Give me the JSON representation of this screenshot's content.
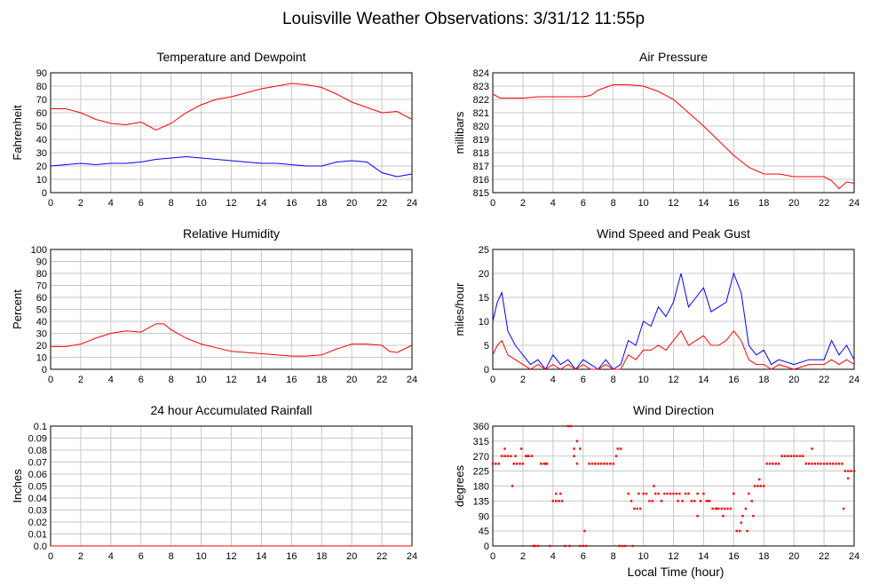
{
  "page": {
    "title": "Louisville Weather Observations: 3/31/12 11:55p",
    "x_axis_title": "Local Time (hour)"
  },
  "chart_data": [
    {
      "id": "temp",
      "type": "line",
      "title": "Temperature and Dewpoint",
      "xlabel": "",
      "ylabel": "Fahrenheit",
      "xlim": [
        0,
        24
      ],
      "ylim": [
        0,
        90
      ],
      "xticks": [
        0,
        2,
        4,
        6,
        8,
        10,
        12,
        14,
        16,
        18,
        20,
        22,
        24
      ],
      "yticks": [
        0,
        10,
        20,
        30,
        40,
        50,
        60,
        70,
        80,
        90
      ],
      "grid": true,
      "series": [
        {
          "color": "#ff0000",
          "x": [
            0,
            1,
            2,
            3,
            4,
            5,
            6,
            7,
            8,
            9,
            10,
            11,
            12,
            13,
            14,
            15,
            16,
            17,
            18,
            19,
            20,
            21,
            22,
            23,
            24
          ],
          "y": [
            63,
            63,
            60,
            55,
            52,
            51,
            53,
            47,
            52,
            60,
            66,
            70,
            72,
            75,
            78,
            80,
            82,
            81,
            79,
            74,
            68,
            64,
            60,
            61,
            55
          ]
        },
        {
          "color": "#0000ff",
          "x": [
            0,
            1,
            2,
            3,
            4,
            5,
            6,
            7,
            8,
            9,
            10,
            11,
            12,
            13,
            14,
            15,
            16,
            17,
            18,
            19,
            20,
            21,
            22,
            23,
            24
          ],
          "y": [
            20,
            21,
            22,
            21,
            22,
            22,
            23,
            25,
            26,
            27,
            26,
            25,
            24,
            23,
            22,
            22,
            21,
            20,
            20,
            23,
            24,
            23,
            15,
            12,
            14
          ]
        }
      ]
    },
    {
      "id": "pressure",
      "type": "line",
      "title": "Air Pressure",
      "xlabel": "",
      "ylabel": "millibars",
      "xlim": [
        0,
        24
      ],
      "ylim": [
        815,
        824
      ],
      "xticks": [
        0,
        2,
        4,
        6,
        8,
        10,
        12,
        14,
        16,
        18,
        20,
        22,
        24
      ],
      "yticks": [
        815,
        816,
        817,
        818,
        819,
        820,
        821,
        822,
        823,
        824
      ],
      "grid": true,
      "series": [
        {
          "color": "#ff0000",
          "x": [
            0,
            0.5,
            1,
            2,
            3,
            4,
            5,
            6,
            6.5,
            7,
            8,
            9,
            10,
            10.5,
            11,
            12,
            13,
            14,
            15,
            16,
            17,
            18,
            19,
            20,
            21,
            22,
            22.5,
            23,
            23.5,
            24
          ],
          "y": [
            822.4,
            822.1,
            822.1,
            822.1,
            822.2,
            822.2,
            822.2,
            822.2,
            822.3,
            822.7,
            823.1,
            823.1,
            823.0,
            822.8,
            822.6,
            822.0,
            821.0,
            820.0,
            818.9,
            817.8,
            816.9,
            816.4,
            816.4,
            816.2,
            816.2,
            816.2,
            815.9,
            815.3,
            815.8,
            815.7
          ]
        }
      ]
    },
    {
      "id": "humidity",
      "type": "line",
      "title": "Relative Humidity",
      "xlabel": "",
      "ylabel": "Percent",
      "xlim": [
        0,
        24
      ],
      "ylim": [
        0,
        100
      ],
      "xticks": [
        0,
        2,
        4,
        6,
        8,
        10,
        12,
        14,
        16,
        18,
        20,
        22,
        24
      ],
      "yticks": [
        0,
        10,
        20,
        30,
        40,
        50,
        60,
        70,
        80,
        90,
        100
      ],
      "grid": true,
      "series": [
        {
          "color": "#ff0000",
          "x": [
            0,
            1,
            2,
            3,
            4,
            5,
            6,
            7,
            7.5,
            8,
            9,
            10,
            11,
            12,
            13,
            14,
            15,
            16,
            17,
            18,
            19,
            20,
            21,
            22,
            22.5,
            23,
            24
          ],
          "y": [
            19,
            19,
            21,
            26,
            30,
            32,
            31,
            38,
            38,
            33,
            26,
            21,
            18,
            15,
            14,
            13,
            12,
            11,
            11,
            12,
            17,
            21,
            21,
            20,
            15,
            14,
            20
          ]
        }
      ]
    },
    {
      "id": "wind",
      "type": "line",
      "title": "Wind Speed and Peak Gust",
      "xlabel": "",
      "ylabel": "miles/hour",
      "xlim": [
        0,
        24
      ],
      "ylim": [
        0,
        25
      ],
      "xticks": [
        0,
        2,
        4,
        6,
        8,
        10,
        12,
        14,
        16,
        18,
        20,
        22,
        24
      ],
      "yticks": [
        0,
        5,
        10,
        15,
        20,
        25
      ],
      "grid": true,
      "series": [
        {
          "color": "#0000ff",
          "x": [
            0,
            0.3,
            0.6,
            1,
            1.5,
            2,
            2.5,
            3,
            3.5,
            4,
            4.5,
            5,
            5.5,
            6,
            6.5,
            7,
            7.5,
            8,
            8.5,
            9,
            9.5,
            10,
            10.5,
            11,
            11.5,
            12,
            12.5,
            13,
            13.5,
            14,
            14.5,
            15,
            15.5,
            16,
            16.5,
            17,
            17.5,
            18,
            18.5,
            19,
            20,
            21,
            22,
            22.5,
            23,
            23.5,
            24
          ],
          "y": [
            10,
            14,
            16,
            8,
            5,
            3,
            1,
            2,
            0,
            3,
            1,
            2,
            0,
            2,
            1,
            0,
            2,
            0,
            1,
            6,
            5,
            10,
            9,
            13,
            11,
            14,
            20,
            13,
            15,
            17,
            12,
            13,
            14,
            20,
            16,
            5,
            3,
            4,
            1,
            2,
            1,
            2,
            2,
            6,
            3,
            5,
            2
          ]
        },
        {
          "color": "#ff0000",
          "x": [
            0,
            0.3,
            0.6,
            1,
            1.5,
            2,
            2.5,
            3,
            3.5,
            4,
            4.5,
            5,
            5.5,
            6,
            6.5,
            7,
            7.5,
            8,
            8.5,
            9,
            9.5,
            10,
            10.5,
            11,
            11.5,
            12,
            12.5,
            13,
            13.5,
            14,
            14.5,
            15,
            15.5,
            16,
            16.5,
            17,
            17.5,
            18,
            18.5,
            19,
            20,
            21,
            22,
            22.5,
            23,
            23.5,
            24
          ],
          "y": [
            3,
            5,
            6,
            3,
            2,
            1,
            0,
            1,
            0,
            1,
            0,
            1,
            0,
            1,
            0,
            0,
            1,
            0,
            0,
            3,
            2,
            4,
            4,
            5,
            4,
            6,
            8,
            5,
            6,
            7,
            5,
            5,
            6,
            8,
            6,
            2,
            1,
            1,
            0,
            1,
            0,
            1,
            1,
            2,
            1,
            2,
            1
          ]
        }
      ]
    },
    {
      "id": "rain",
      "type": "line",
      "title": "24 hour Accumulated Rainfall",
      "xlabel": "",
      "ylabel": "Inches",
      "xlim": [
        0,
        24
      ],
      "ylim": [
        0,
        0.1
      ],
      "xticks": [
        0,
        2,
        4,
        6,
        8,
        10,
        12,
        14,
        16,
        18,
        20,
        22,
        24
      ],
      "yticks": [
        "0.0",
        "0.01",
        "0.02",
        "0.03",
        "0.04",
        "0.05",
        "0.06",
        "0.07",
        "0.08",
        "0.09",
        "0.1"
      ],
      "grid": true,
      "series": [
        {
          "color": "#ff0000",
          "x": [
            0,
            24
          ],
          "y": [
            0,
            0
          ]
        }
      ]
    },
    {
      "id": "direction",
      "type": "scatter",
      "title": "Wind Direction",
      "xlabel": "Local Time (hour)",
      "ylabel": "degrees",
      "xlim": [
        0,
        24
      ],
      "ylim": [
        0,
        360
      ],
      "xticks": [
        0,
        2,
        4,
        6,
        8,
        10,
        12,
        14,
        16,
        18,
        20,
        22,
        24
      ],
      "yticks": [
        0,
        45,
        90,
        135,
        180,
        225,
        270,
        315,
        360
      ],
      "grid": true,
      "series": [
        {
          "color": "#ff0000",
          "x": [
            0,
            0.2,
            0.4,
            0.6,
            0.8,
            1.0,
            1.2,
            1.4,
            1.6,
            1.8,
            2.0,
            2.2,
            2.4,
            2.6,
            2.8,
            3.0,
            3.2,
            3.4,
            3.6,
            3.8,
            4.0,
            4.2,
            4.4,
            4.6,
            4.8,
            5.0,
            5.2,
            5.4,
            5.6,
            5.8,
            6.0,
            6.2,
            6.4,
            6.6,
            6.8,
            7.0,
            7.2,
            7.4,
            7.6,
            7.8,
            8.0,
            8.2,
            8.4,
            8.6,
            8.8,
            9.0,
            9.2,
            9.4,
            9.6,
            9.8,
            10.0,
            10.2,
            10.4,
            10.6,
            10.8,
            11.0,
            11.2,
            11.4,
            11.6,
            11.8,
            12.0,
            12.2,
            12.4,
            12.6,
            12.8,
            13.0,
            13.2,
            13.4,
            13.6,
            13.8,
            14.0,
            14.2,
            14.4,
            14.6,
            14.8,
            15.0,
            15.2,
            15.4,
            15.6,
            15.8,
            16.0,
            16.2,
            16.4,
            16.6,
            16.8,
            17.0,
            17.2,
            17.4,
            17.6,
            17.8,
            18.0,
            18.2,
            18.4,
            18.6,
            18.8,
            19.0,
            19.2,
            19.4,
            19.6,
            19.8,
            20.0,
            20.2,
            20.4,
            20.6,
            20.8,
            21.0,
            21.2,
            21.4,
            21.6,
            21.8,
            22.0,
            22.2,
            22.4,
            22.6,
            22.8,
            23.0,
            23.2,
            23.4,
            23.6,
            23.8,
            24.0,
            0.8,
            1.3,
            1.5,
            1.9,
            2.3,
            2.7,
            3.5,
            4.2,
            4.5,
            5.1,
            5.4,
            5.6,
            5.8,
            6.1,
            8.3,
            8.5,
            9.3,
            9.7,
            10.7,
            11.2,
            12.3,
            13.6,
            14.3,
            14.9,
            15.3,
            16.0,
            16.5,
            16.9,
            17.3,
            17.7,
            21.2,
            23.3,
            23.6
          ],
          "y": [
            247,
            247,
            247,
            270,
            270,
            270,
            270,
            247,
            247,
            247,
            247,
            270,
            270,
            270,
            0,
            0,
            247,
            247,
            247,
            0,
            135,
            135,
            135,
            135,
            0,
            360,
            360,
            270,
            247,
            0,
            0,
            0,
            247,
            247,
            247,
            247,
            247,
            247,
            247,
            247,
            247,
            270,
            0,
            0,
            0,
            157,
            135,
            112,
            112,
            112,
            157,
            157,
            135,
            135,
            157,
            157,
            135,
            157,
            157,
            157,
            157,
            157,
            157,
            135,
            157,
            157,
            135,
            135,
            157,
            135,
            157,
            135,
            135,
            112,
            112,
            112,
            112,
            112,
            112,
            112,
            157,
            45,
            45,
            90,
            112,
            157,
            135,
            180,
            180,
            180,
            180,
            247,
            247,
            247,
            247,
            247,
            270,
            270,
            270,
            270,
            270,
            270,
            270,
            270,
            247,
            247,
            247,
            247,
            247,
            247,
            247,
            247,
            247,
            247,
            247,
            247,
            247,
            225,
            225,
            225,
            225,
            292,
            180,
            270,
            292,
            270,
            0,
            247,
            157,
            157,
            0,
            292,
            315,
            292,
            45,
            292,
            292,
            0,
            157,
            180,
            135,
            135,
            90,
            135,
            112,
            90,
            157,
            70,
            45,
            90,
            200,
            292,
            112,
            203
          ]
        }
      ]
    }
  ]
}
